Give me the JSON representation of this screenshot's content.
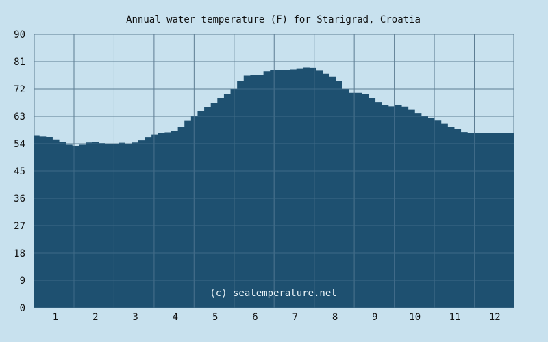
{
  "chart_data": {
    "type": "area",
    "title": "Annual water temperature (F) for Starigrad, Croatia",
    "xlabel": "",
    "ylabel": "",
    "ylim": [
      0,
      90
    ],
    "yticks": [
      "0",
      "9",
      "18",
      "27",
      "36",
      "45",
      "54",
      "63",
      "72",
      "81",
      "90"
    ],
    "categories": [
      "1",
      "2",
      "3",
      "4",
      "5",
      "6",
      "7",
      "8",
      "9",
      "10",
      "11",
      "12"
    ],
    "grid": true,
    "series": [
      {
        "x": [
          1,
          5,
          10,
          15,
          20,
          25,
          30,
          35,
          40,
          45,
          50,
          55,
          60,
          65,
          70,
          75,
          80,
          85,
          90,
          95,
          100,
          105,
          110,
          115,
          120,
          125,
          130,
          135,
          140,
          145,
          150,
          155,
          160,
          165,
          170,
          175,
          180,
          185,
          190,
          195,
          200,
          205,
          210,
          215,
          220,
          225,
          230,
          235,
          240,
          245,
          250,
          255,
          260,
          265,
          270,
          275,
          280,
          285,
          290,
          295,
          300,
          305,
          310,
          315,
          320,
          325,
          330,
          335,
          340,
          345,
          350,
          355,
          360,
          365
        ],
        "values": [
          56.6,
          56.4,
          56.1,
          55.4,
          54.6,
          53.7,
          53.3,
          53.7,
          54.4,
          54.5,
          54.2,
          53.8,
          53.9,
          54.3,
          54.0,
          54.4,
          55.1,
          56.0,
          57.0,
          57.5,
          57.7,
          58.2,
          59.6,
          61.5,
          63.2,
          64.7,
          66.0,
          67.5,
          69.0,
          70.2,
          72.0,
          74.5,
          76.4,
          76.5,
          76.6,
          77.8,
          78.3,
          78.2,
          78.3,
          78.4,
          78.6,
          79.1,
          79.0,
          78.0,
          77.0,
          76.1,
          74.5,
          72.0,
          70.7,
          70.7,
          70.2,
          68.9,
          67.7,
          66.7,
          66.3,
          66.6,
          66.2,
          65.1,
          64.1,
          63.2,
          62.5,
          61.6,
          60.6,
          59.6,
          58.8,
          57.8,
          57.5,
          57.5,
          57.5,
          57.5,
          57.5,
          57.5,
          57.5,
          57.5
        ]
      }
    ],
    "watermark": "(c) seatemperature.net",
    "colors": {
      "background": "#c8e1ee",
      "fill": "#1e5070",
      "grid_on_background": "#5d7d93",
      "grid_on_fill": "#3f6a87",
      "text": "#111111",
      "watermark": "#e9f3f8"
    }
  }
}
